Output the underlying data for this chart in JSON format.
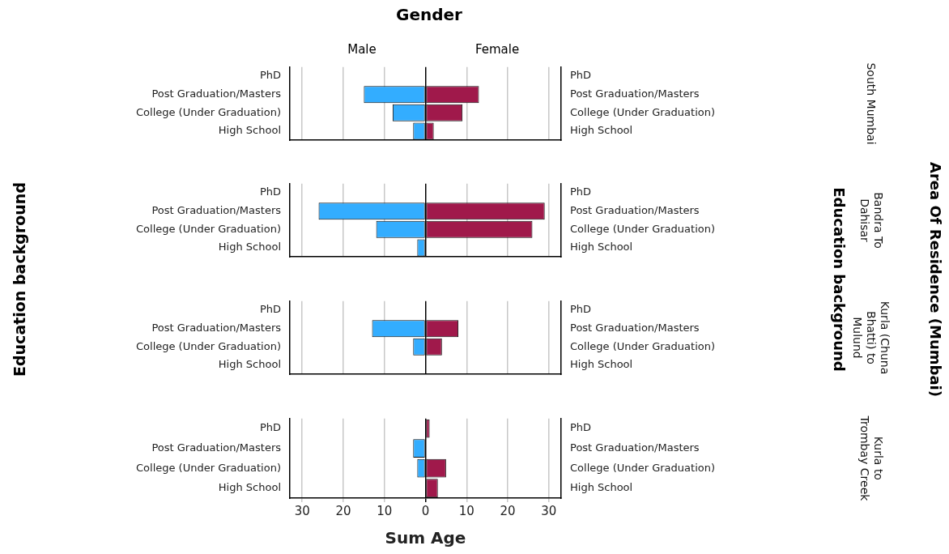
{
  "chart_data": [
    {
      "type": "bar",
      "orientation": "horizontal",
      "stacked": true,
      "legend_title": "Gender",
      "y2label": "South Mumbai",
      "ylabel": "Education background",
      "annotations": [
        "Education background",
        "Area Of Residence (Mumbai)"
      ],
      "categories": [
        "PhD",
        "Post Graduation/Masters",
        "College (Under Graduation)",
        "High School"
      ],
      "series": [
        {
          "name": "Male",
          "color": "#33adff",
          "values": [
            null,
            -15,
            -8,
            -3
          ]
        },
        {
          "name": "Female",
          "color": "#a0194b",
          "values": [
            null,
            13,
            9,
            2
          ]
        }
      ],
      "xlim": [
        -33,
        33
      ],
      "xticks": [
        -30,
        -20,
        -10,
        0,
        10,
        20,
        30
      ],
      "grid": "x",
      "legend": false,
      "tick_labels": "y"
    },
    {
      "type": "bar",
      "orientation": "horizontal",
      "stacked": true,
      "y2label": "Bandra To Dahisar",
      "categories": [
        "PhD",
        "Post Graduation/Masters",
        "College (Under Graduation)",
        "High School"
      ],
      "series": [
        {
          "color": "#33adff",
          "values": [
            null,
            -26,
            -12,
            -2
          ]
        },
        {
          "color": "#a0194b",
          "values": [
            null,
            29,
            26,
            null
          ]
        }
      ],
      "xlim": [
        -33,
        33
      ],
      "xticks": [
        -30,
        -20,
        -10,
        0,
        10,
        20,
        30
      ],
      "grid": "x",
      "legend": false,
      "tick_labels": "y"
    },
    {
      "type": "bar",
      "orientation": "horizontal",
      "stacked": true,
      "y2label": "Kurla (Chuna Bhatti) to Mulund",
      "categories": [
        "PhD",
        "Post Graduation/Masters",
        "College (Under Graduation)",
        "High School"
      ],
      "series": [
        {
          "color": "#33adff",
          "values": [
            null,
            -13,
            -3,
            null
          ]
        },
        {
          "color": "#a0194b",
          "values": [
            null,
            8,
            4,
            null
          ]
        }
      ],
      "xlim": [
        -33,
        33
      ],
      "xticks": [
        -30,
        -20,
        -10,
        0,
        10,
        20,
        30
      ],
      "grid": "x",
      "legend": false,
      "tick_labels": "y"
    },
    {
      "type": "bar",
      "orientation": "horizontal",
      "stacked": true,
      "y2label": "Kurla to Trombay Creek",
      "xlabel": "Sum Age",
      "categories": [
        "PhD",
        "Post Graduation/Masters",
        "College (Under Graduation)",
        "High School"
      ],
      "series": [
        {
          "color": "#33adff",
          "values": [
            null,
            -3,
            -2,
            null
          ]
        },
        {
          "color": "#a0194b",
          "values": [
            1,
            null,
            5,
            3
          ]
        }
      ],
      "xlim": [
        -33,
        33
      ],
      "xticks": [
        {
          "value": -30,
          "label": "30"
        },
        {
          "value": -20,
          "label": "20"
        },
        {
          "value": -10,
          "label": "10"
        },
        0,
        10,
        20,
        30
      ],
      "grid": "x",
      "legend": false
    }
  ]
}
